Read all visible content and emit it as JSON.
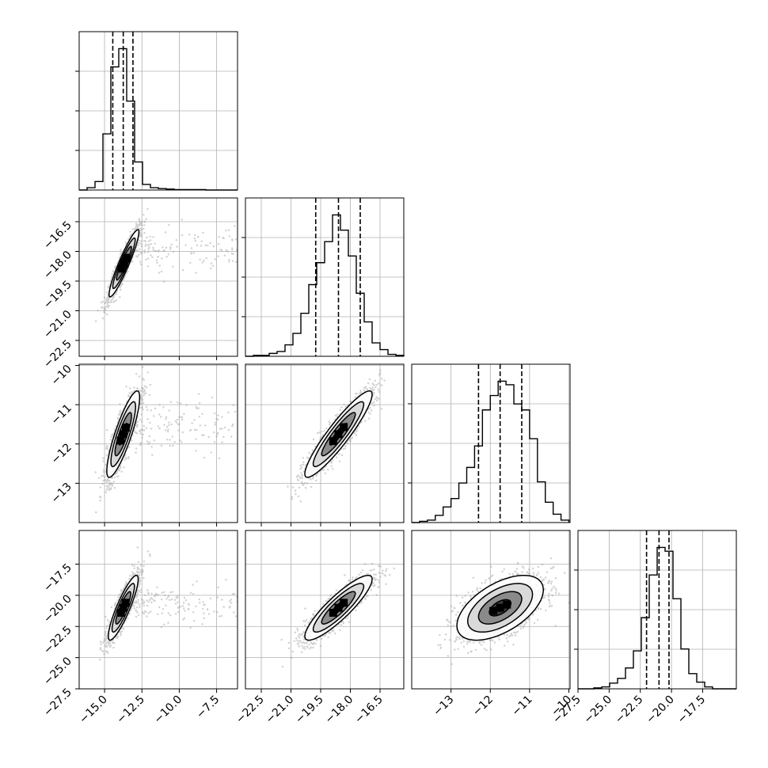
{
  "colors": {
    "ink": "#000000",
    "grid": "#b0b0b0",
    "background": "#ffffff"
  },
  "chart_data": {
    "type": "corner",
    "parameters": 4,
    "grid": true,
    "title": "",
    "axis_labels": [
      "",
      "",
      "",
      ""
    ],
    "ranges": [
      [
        -16.7,
        -6.1
      ],
      [
        -23.3,
        -15.3
      ],
      [
        -14.0,
        -9.97
      ],
      [
        -27.5,
        -14.8
      ]
    ],
    "ticks": [
      {
        "values": [
          -15.0,
          -12.5,
          -10.0,
          -7.5
        ],
        "labels": [
          "−15.0",
          "−12.5",
          "−10.0",
          "−7.5"
        ]
      },
      {
        "values": [
          -22.5,
          -21.0,
          -19.5,
          -18.0,
          -16.5
        ],
        "labels": [
          "−22.5",
          "−21.0",
          "−19.5",
          "−18.0",
          "−16.5"
        ]
      },
      {
        "values": [
          -13,
          -12,
          -11,
          -10
        ],
        "labels": [
          "−13",
          "−12",
          "−11",
          "−10"
        ]
      },
      {
        "values": [
          -27.5,
          -25.0,
          -22.5,
          -20.0,
          -17.5
        ],
        "labels": [
          "−27.5",
          "−25.0",
          "−22.5",
          "−20.0",
          "−17.5"
        ]
      }
    ],
    "quantiles": [
      {
        "param": 0,
        "values": [
          -14.45,
          -13.75,
          -13.1
        ]
      },
      {
        "param": 1,
        "values": [
          -19.75,
          -18.6,
          -17.5
        ]
      },
      {
        "param": 2,
        "values": [
          -12.3,
          -11.75,
          -11.2
        ]
      },
      {
        "param": 3,
        "values": [
          -22.0,
          -21.0,
          -20.2
        ]
      }
    ],
    "histograms": [
      {
        "param": 0,
        "edges": [
          -16.7,
          -16.17,
          -15.64,
          -15.11,
          -14.58,
          -14.05,
          -13.52,
          -12.99,
          -12.46,
          -11.93,
          -11.4,
          -10.87,
          -10.34,
          -9.81,
          -9.28,
          -8.75,
          -8.22,
          -7.69,
          -7.16,
          -6.63,
          -6.1
        ],
        "counts": [
          0,
          5,
          18,
          120,
          263,
          302,
          190,
          60,
          12,
          5,
          3,
          2,
          1,
          1,
          1,
          1,
          0,
          0,
          0,
          0
        ]
      },
      {
        "param": 1,
        "edges": [
          -23.3,
          -22.9,
          -22.5,
          -22.1,
          -21.7,
          -21.3,
          -20.9,
          -20.5,
          -20.1,
          -19.7,
          -19.3,
          -18.9,
          -18.5,
          -18.1,
          -17.7,
          -17.3,
          -16.9,
          -16.5,
          -16.1,
          -15.7,
          -15.3
        ],
        "counts": [
          0,
          1,
          1,
          3,
          5,
          12,
          24,
          45,
          75,
          98,
          120,
          148,
          132,
          105,
          66,
          36,
          14,
          7,
          2,
          1
        ]
      },
      {
        "param": 2,
        "edges": [
          -14.0,
          -13.8,
          -13.6,
          -13.4,
          -13.2,
          -13.0,
          -12.8,
          -12.6,
          -12.4,
          -12.2,
          -12.0,
          -11.8,
          -11.6,
          -11.4,
          -11.2,
          -11.0,
          -10.8,
          -10.6,
          -10.4,
          -10.2,
          -10.0
        ],
        "counts": [
          0,
          1,
          2,
          6,
          13,
          20,
          33,
          46,
          64,
          94,
          106,
          118,
          115,
          99,
          94,
          70,
          34,
          17,
          7,
          2
        ]
      },
      {
        "param": 3,
        "edges": [
          -27.5,
          -26.865,
          -26.23,
          -25.595,
          -24.96,
          -24.325,
          -23.69,
          -23.055,
          -22.42,
          -21.785,
          -21.15,
          -20.515,
          -19.88,
          -19.245,
          -18.61,
          -17.975,
          -17.34,
          -16.705,
          -16.07,
          -15.435,
          -14.8
        ],
        "counts": [
          0,
          0,
          1,
          2,
          6,
          11,
          22,
          40,
          75,
          120,
          149,
          145,
          95,
          42,
          16,
          7,
          2,
          0,
          0,
          0
        ]
      }
    ],
    "pairs": [
      {
        "x": 0,
        "y": 1,
        "center": [
          -13.7,
          -18.6
        ],
        "sd": [
          0.5,
          0.85
        ],
        "rho": 0.93,
        "contour_levels_sigma": [
          0.5,
          1.0,
          1.5,
          2.0
        ]
      },
      {
        "x": 0,
        "y": 2,
        "center": [
          -13.75,
          -11.75
        ],
        "sd": [
          0.55,
          0.55
        ],
        "rho": 0.85,
        "contour_levels_sigma": [
          0.5,
          1.0,
          1.5,
          2.0
        ]
      },
      {
        "x": 1,
        "y": 2,
        "center": [
          -18.6,
          -11.75
        ],
        "sd": [
          0.85,
          0.55
        ],
        "rho": 0.92,
        "contour_levels_sigma": [
          0.5,
          1.0,
          1.5,
          2.0
        ]
      },
      {
        "x": 0,
        "y": 3,
        "center": [
          -13.75,
          -21.0
        ],
        "sd": [
          0.5,
          1.3
        ],
        "rho": 0.88,
        "contour_levels_sigma": [
          0.5,
          1.0,
          1.5,
          2.0
        ]
      },
      {
        "x": 1,
        "y": 3,
        "center": [
          -18.6,
          -21.0
        ],
        "sd": [
          0.85,
          1.3
        ],
        "rho": 0.88,
        "contour_levels_sigma": [
          0.5,
          1.0,
          1.5,
          2.0
        ]
      },
      {
        "x": 2,
        "y": 3,
        "center": [
          -11.75,
          -21.0
        ],
        "sd": [
          0.55,
          1.3
        ],
        "rho": 0.55,
        "contour_levels_sigma": [
          0.5,
          1.0,
          1.5,
          2.0
        ]
      }
    ]
  }
}
